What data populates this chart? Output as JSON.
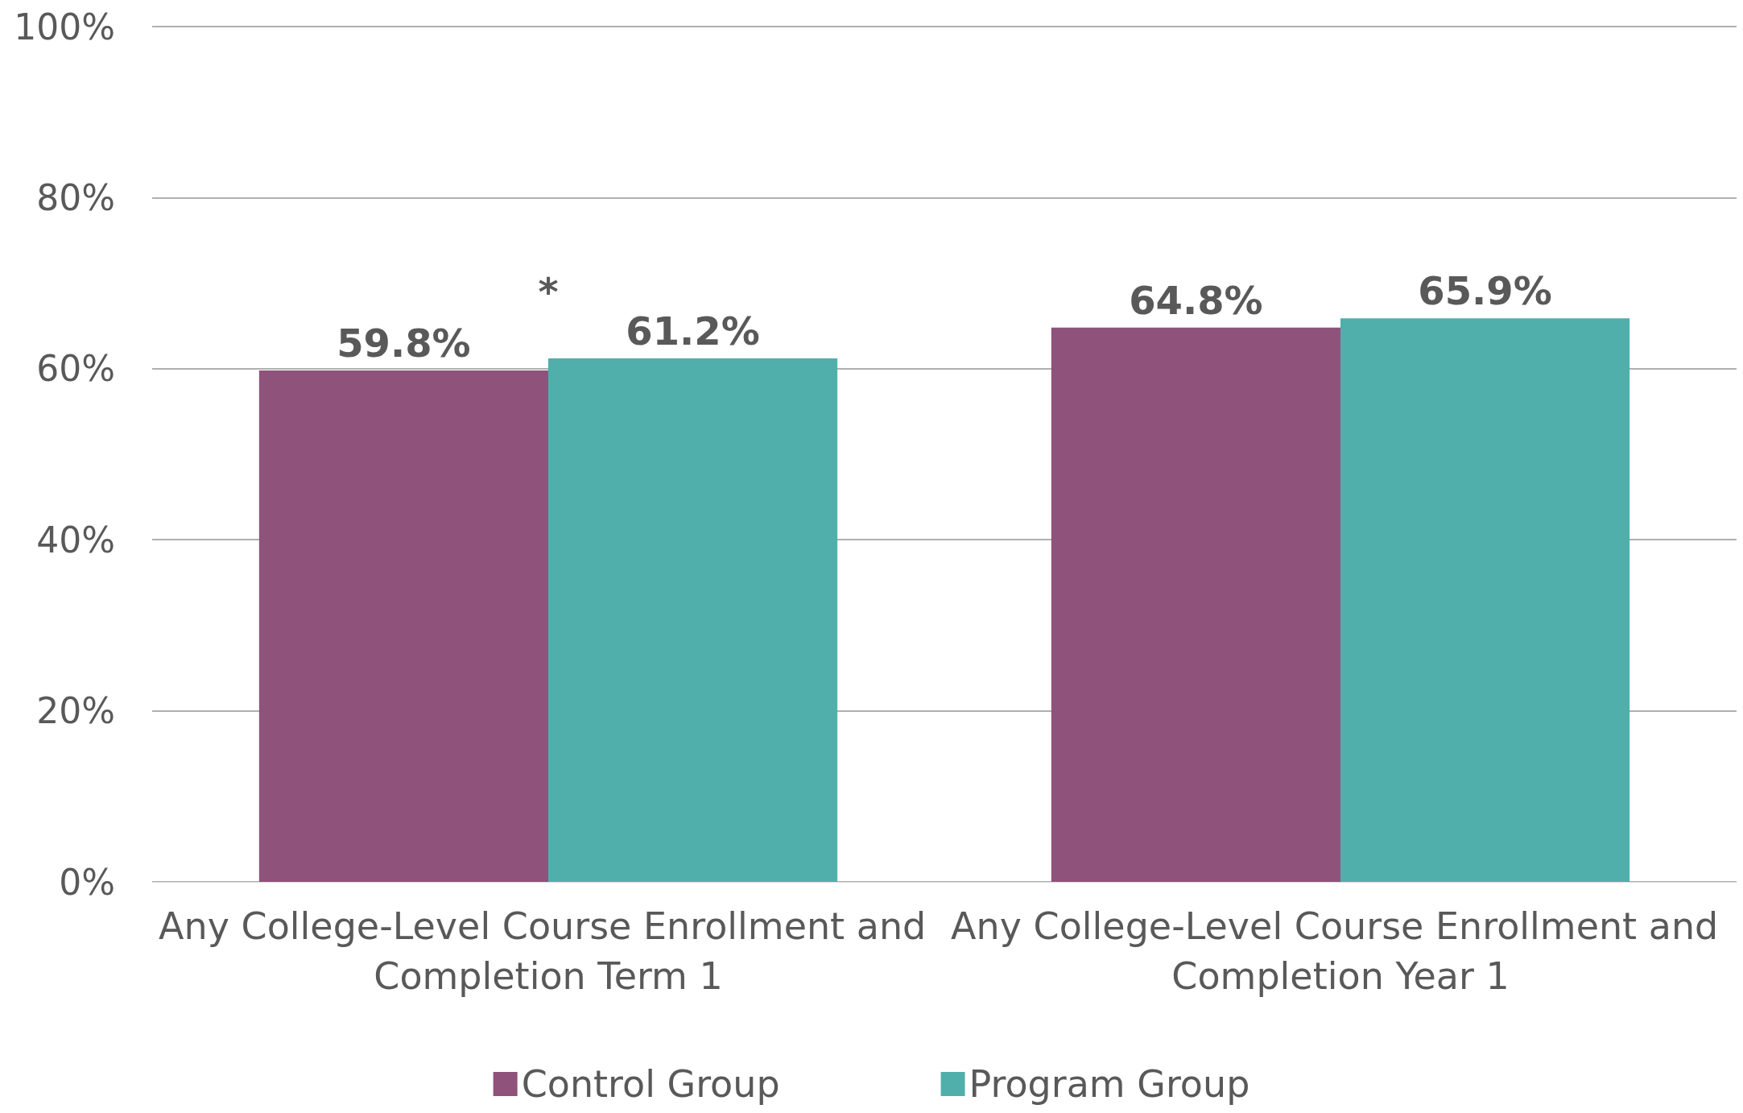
{
  "chart_data": {
    "type": "bar",
    "categories": [
      "Any College-Level Course Enrollment and Completion Term 1",
      "Any College-Level Course Enrollment and Completion Year 1"
    ],
    "series": [
      {
        "name": "Control Group",
        "color": "#8f527a",
        "values": [
          59.8,
          64.8
        ],
        "value_labels": [
          "59.8%",
          "64.8%"
        ]
      },
      {
        "name": "Program Group",
        "color": "#50afab",
        "values": [
          61.2,
          65.9
        ],
        "value_labels": [
          "61.2%",
          "65.9%"
        ]
      }
    ],
    "ylim": [
      0,
      100
    ],
    "yticks": [
      {
        "value": 0,
        "label": "0%"
      },
      {
        "value": 20,
        "label": "20%"
      },
      {
        "value": 40,
        "label": "40%"
      },
      {
        "value": 60,
        "label": "60%"
      },
      {
        "value": 80,
        "label": "80%"
      },
      {
        "value": 100,
        "label": "100%"
      }
    ],
    "grid": "y",
    "legend": "bottom",
    "annotations": [
      "*"
    ]
  }
}
